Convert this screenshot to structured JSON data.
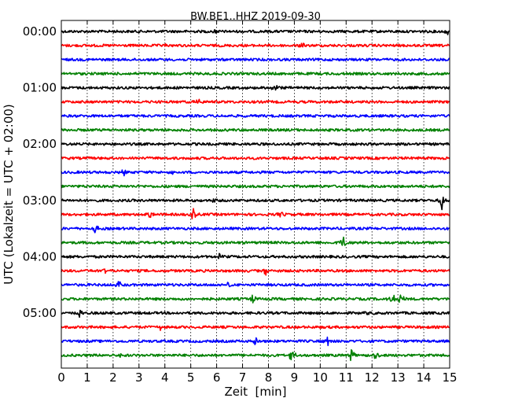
{
  "chart_data": {
    "type": "line",
    "title": "BW.BE1..HHZ 2019-09-30",
    "xlabel": "Zeit  [min]",
    "ylabel": "UTC (Lokalzeit = UTC + 02:00)",
    "xlim": [
      0,
      15
    ],
    "x_ticks": [
      0,
      1,
      2,
      3,
      4,
      5,
      6,
      7,
      8,
      9,
      10,
      11,
      12,
      13,
      14,
      15
    ],
    "y_tick_labels": [
      "00:00",
      "01:00",
      "02:00",
      "03:00",
      "04:00",
      "05:00"
    ],
    "grid": {
      "vertical_dotted": true
    },
    "color_cycle": [
      "#000000",
      "#ff0000",
      "#0000ff",
      "#008000"
    ],
    "rows": [
      {
        "start": "00:00",
        "color": "#000000",
        "events": [
          {
            "t": 5.9,
            "amp": 0.3
          },
          {
            "t": 14.9,
            "amp": 0.5
          }
        ]
      },
      {
        "start": "00:15",
        "color": "#ff0000",
        "events": [
          {
            "t": 9.3,
            "amp": 0.6
          },
          {
            "t": 4.1,
            "amp": 0.3
          }
        ]
      },
      {
        "start": "00:30",
        "color": "#0000ff",
        "events": []
      },
      {
        "start": "00:45",
        "color": "#008000",
        "events": []
      },
      {
        "start": "01:00",
        "color": "#000000",
        "events": [
          {
            "t": 8.2,
            "amp": 1.0
          }
        ]
      },
      {
        "start": "01:15",
        "color": "#ff0000",
        "events": [
          {
            "t": 5.3,
            "amp": 0.5
          }
        ]
      },
      {
        "start": "01:30",
        "color": "#0000ff",
        "events": []
      },
      {
        "start": "01:45",
        "color": "#008000",
        "events": []
      },
      {
        "start": "02:00",
        "color": "#000000",
        "events": []
      },
      {
        "start": "02:15",
        "color": "#ff0000",
        "events": [
          {
            "t": 2.8,
            "amp": 0.3
          }
        ]
      },
      {
        "start": "02:30",
        "color": "#0000ff",
        "events": [
          {
            "t": 2.4,
            "amp": 0.5
          },
          {
            "t": 4.3,
            "amp": 0.6
          }
        ]
      },
      {
        "start": "02:45",
        "color": "#008000",
        "events": []
      },
      {
        "start": "03:00",
        "color": "#000000",
        "events": [
          {
            "t": 5.9,
            "amp": 0.3
          },
          {
            "t": 14.7,
            "amp": 1.3
          }
        ]
      },
      {
        "start": "03:15",
        "color": "#ff0000",
        "events": [
          {
            "t": 3.4,
            "amp": 0.6
          },
          {
            "t": 5.1,
            "amp": 0.9
          },
          {
            "t": 8.5,
            "amp": 0.5
          }
        ]
      },
      {
        "start": "03:30",
        "color": "#0000ff",
        "events": [
          {
            "t": 1.3,
            "amp": 0.9
          }
        ]
      },
      {
        "start": "03:45",
        "color": "#008000",
        "events": [
          {
            "t": 10.9,
            "amp": 1.2
          }
        ]
      },
      {
        "start": "04:00",
        "color": "#000000",
        "events": [
          {
            "t": 6.1,
            "amp": 0.4
          }
        ]
      },
      {
        "start": "04:15",
        "color": "#ff0000",
        "events": [
          {
            "t": 1.7,
            "amp": 0.6
          },
          {
            "t": 7.9,
            "amp": 0.7
          }
        ]
      },
      {
        "start": "04:30",
        "color": "#0000ff",
        "events": [
          {
            "t": 2.2,
            "amp": 0.8
          },
          {
            "t": 6.5,
            "amp": 0.6
          }
        ]
      },
      {
        "start": "04:45",
        "color": "#008000",
        "events": [
          {
            "t": 7.4,
            "amp": 0.6
          },
          {
            "t": 12.8,
            "amp": 0.9
          },
          {
            "t": 13.1,
            "amp": 1.0
          }
        ]
      },
      {
        "start": "05:00",
        "color": "#000000",
        "events": [
          {
            "t": 0.7,
            "amp": 0.7
          },
          {
            "t": 11.9,
            "amp": 0.4
          }
        ]
      },
      {
        "start": "05:15",
        "color": "#ff0000",
        "events": [
          {
            "t": 3.8,
            "amp": 0.5
          }
        ]
      },
      {
        "start": "05:30",
        "color": "#0000ff",
        "events": [
          {
            "t": 7.5,
            "amp": 0.8
          },
          {
            "t": 10.3,
            "amp": 0.7
          }
        ]
      },
      {
        "start": "05:45",
        "color": "#008000",
        "events": [
          {
            "t": 2.2,
            "amp": 0.8
          },
          {
            "t": 8.9,
            "amp": 1.2
          },
          {
            "t": 11.2,
            "amp": 1.1
          },
          {
            "t": 12.1,
            "amp": 0.8
          }
        ]
      }
    ]
  }
}
